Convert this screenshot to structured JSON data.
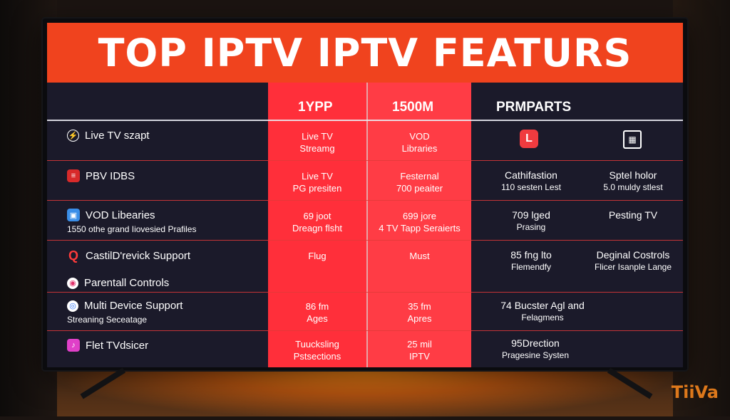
{
  "banner_title": "TOP IPTV IPTV FEATURS",
  "headers": {
    "col1": "1YPP",
    "col2": "1500M",
    "col3": "PRMPARTS"
  },
  "rows": [
    {
      "feature": "Live TV szapt",
      "sub": "",
      "c1": [
        "Live TV",
        "Streamg"
      ],
      "c2": [
        "VOD",
        "Libraries"
      ],
      "r1": [],
      "r2": []
    },
    {
      "feature": "PBV IDBS",
      "sub": "",
      "c1": [
        "Live TV",
        "PG presiten"
      ],
      "c2": [
        "Festernal",
        "700 peaiter"
      ],
      "r1": [
        "Cathifastion",
        "110 sesten Lest"
      ],
      "r2": [
        "Sptel holor",
        "5.0 muldy stlest"
      ]
    },
    {
      "feature": "VOD Libearies",
      "sub": "1550 othe grand Iiovesied Prafiles",
      "c1": [
        "69 joot",
        "Dreagn flsht"
      ],
      "c2": [
        "699 jore",
        "4 TV Tapp Seraierts"
      ],
      "r1": [
        "709 lged",
        "Prasing"
      ],
      "r2": [
        "Pesting TV"
      ]
    },
    {
      "feature": "CastilD'revick Support",
      "sub": "",
      "c1": [
        "Flug"
      ],
      "c2": [
        "Must"
      ],
      "r1": [
        "85 fng lto",
        "Flemendfy"
      ],
      "r2": [
        "Deginal Costrols",
        "Flicer Isanple Lange"
      ]
    },
    {
      "feature": "Parentall Controls",
      "sub": "",
      "c1": [],
      "c2": [],
      "r1": [],
      "r2": []
    },
    {
      "feature": "Multi Device Support",
      "sub": "Streaning Seceatage",
      "c1": [
        "86 fm",
        "Ages"
      ],
      "c2": [
        "35 fm",
        "Apres"
      ],
      "r1": [
        "74 Bucster Agl and",
        "Felagmens"
      ],
      "r2": []
    },
    {
      "feature": "Flet TVdsicer",
      "sub": "",
      "c1": [
        "Tuucksling",
        "Pstsections"
      ],
      "c2": [
        "25 mil",
        "IPTV"
      ],
      "r1": [
        "95Drection",
        "Pragesine Systen"
      ],
      "r2": []
    }
  ],
  "logo": "TiiVa",
  "colors": {
    "banner": "#f0431e",
    "red_column": "#ff2f3a",
    "screen": "#1b1a2a",
    "glow": "#ff8a1e"
  },
  "icons": [
    "clock-icon",
    "tv-guide-icon",
    "vod-library-icon",
    "search-icon",
    "parental-icon",
    "multi-device-icon",
    "music-icon",
    "app-icon",
    "calendar-icon"
  ]
}
